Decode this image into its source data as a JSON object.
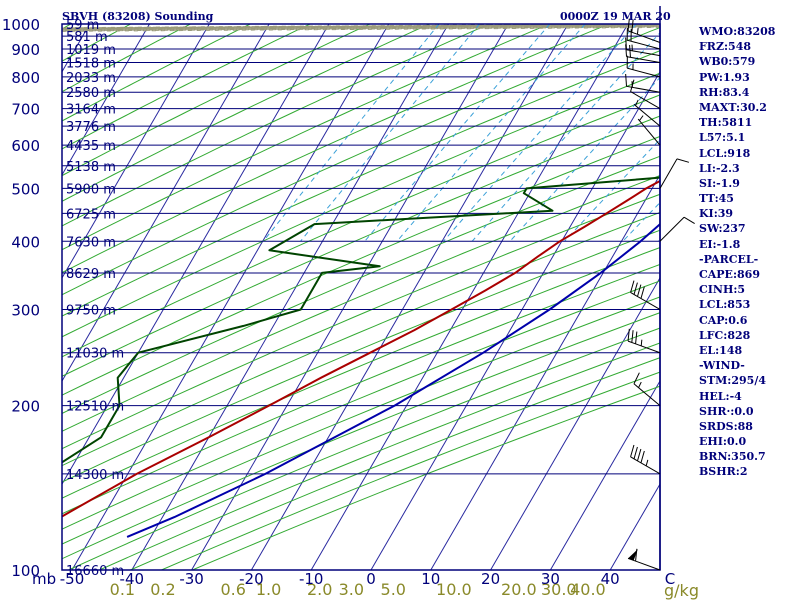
{
  "header": {
    "station": "SBVH (83208) Sounding",
    "time": "0000Z 19 MAR 20"
  },
  "indices": [
    "WMO:83208",
    "FRZ:548",
    "WB0:579",
    "PW:1.93",
    "RH:83.4",
    "MAXT:30.2",
    "TH:5811",
    "L57:5.1",
    "LCL:918",
    "LI:-2.3",
    "SI:-1.9",
    "TT:45",
    "KI:39",
    "SW:237",
    "EI:-1.8",
    "-PARCEL-",
    "CAPE:869",
    "CINH:5",
    "LCL:853",
    "CAP:0.6",
    "LFC:828",
    "EL:148",
    "-WIND-",
    "STM:295/4",
    "HEL:-4",
    "SHR·:0.0",
    "SRDS:88",
    "EHI:0.0",
    "BRN:350.7",
    "BSHR:2"
  ],
  "colors": {
    "frame": "#00007a",
    "isobar": "#00007a",
    "isotherm": "#2a2aa0",
    "dry_adiabat": "#33aa33",
    "moist_adiabat": "#9a9a7a",
    "mixing_ratio": "#3aa0d8",
    "temperature": "#aa0000",
    "dewpoint": "#004400",
    "parcel": "#0000aa",
    "mixing_ratio_labels": "#8a8a2a",
    "wind": "#000000"
  },
  "chart_data": {
    "type": "skew-t",
    "title": "SBVH (83208) Sounding",
    "subtitle": "0000Z 19 MAR 20",
    "xlabel": "",
    "ylabel": "mb",
    "xunits_right": "g/kg",
    "temperature_ticks": [
      "-50",
      "-40",
      "-30",
      "-20",
      "-10",
      "0",
      "10",
      "20",
      "30",
      "40",
      "C"
    ],
    "temperature_tick_values": [
      -50,
      -40,
      -30,
      -20,
      -10,
      0,
      10,
      20,
      30,
      40,
      50
    ],
    "pressure_ticks": [
      100,
      200,
      300,
      400,
      500,
      600,
      700,
      800,
      900,
      1000
    ],
    "pressure_range": [
      1000,
      100
    ],
    "mixing_ratio_labels": [
      "0.1",
      "0.2",
      "0.6",
      "1.0",
      "2.0",
      "3.0",
      "5.0",
      "10.0",
      "20.0",
      "30.0",
      "40.0"
    ],
    "mixing_ratio_values": [
      0.1,
      0.2,
      0.6,
      1.0,
      2.0,
      3.0,
      5.0,
      10.0,
      20.0,
      30.0,
      40.0
    ],
    "height_labels": [
      {
        "p": 100,
        "h": "16660 m"
      },
      {
        "p": 150,
        "h": "14300 m"
      },
      {
        "p": 200,
        "h": "12510 m"
      },
      {
        "p": 250,
        "h": "11030 m"
      },
      {
        "p": 300,
        "h": "9750 m"
      },
      {
        "p": 350,
        "h": "8629 m"
      },
      {
        "p": 400,
        "h": "7630 m"
      },
      {
        "p": 450,
        "h": "6725 m"
      },
      {
        "p": 500,
        "h": "5900 m"
      },
      {
        "p": 550,
        "h": "5138 m"
      },
      {
        "p": 600,
        "h": "4435 m"
      },
      {
        "p": 650,
        "h": "3776 m"
      },
      {
        "p": 700,
        "h": "3164 m"
      },
      {
        "p": 750,
        "h": "2580 m"
      },
      {
        "p": 800,
        "h": "2033 m"
      },
      {
        "p": 850,
        "h": "1518 m"
      },
      {
        "p": 900,
        "h": "1019 m"
      },
      {
        "p": 950,
        "h": "581 m"
      },
      {
        "p": 1000,
        "h": "59 m"
      }
    ],
    "series": [
      {
        "key": "temperature",
        "points": [
          [
            933,
            29
          ],
          [
            925,
            27
          ],
          [
            900,
            26
          ],
          [
            850,
            24.5
          ],
          [
            800,
            23
          ],
          [
            750,
            21.3
          ],
          [
            700,
            19.3
          ],
          [
            650,
            17
          ],
          [
            600,
            15.2
          ],
          [
            575,
            14.5
          ],
          [
            550,
            13.8
          ],
          [
            525,
            11.5
          ],
          [
            500,
            9
          ],
          [
            475,
            7
          ],
          [
            450,
            4.8
          ],
          [
            425,
            2.4
          ],
          [
            400,
            -0.3
          ],
          [
            375,
            -2.5
          ],
          [
            350,
            -4.7
          ],
          [
            325,
            -8
          ],
          [
            300,
            -11.8
          ],
          [
            275,
            -16
          ],
          [
            250,
            -21.2
          ],
          [
            225,
            -27
          ],
          [
            200,
            -33
          ],
          [
            175,
            -40
          ],
          [
            150,
            -48.5
          ],
          [
            125,
            -57
          ],
          [
            100,
            -61
          ],
          [
            94,
            -58
          ]
        ]
      },
      {
        "key": "dewpoint",
        "points": [
          [
            933,
            23
          ],
          [
            925,
            22.5
          ],
          [
            900,
            23.5
          ],
          [
            850,
            22
          ],
          [
            800,
            19.5
          ],
          [
            750,
            17
          ],
          [
            700,
            14.5
          ],
          [
            650,
            11.5
          ],
          [
            600,
            7.3
          ],
          [
            575,
            12
          ],
          [
            550,
            14
          ],
          [
            525,
            12
          ],
          [
            500,
            -11
          ],
          [
            490,
            -11
          ],
          [
            455,
            -4.5
          ],
          [
            430,
            -43
          ],
          [
            385,
            -48
          ],
          [
            360,
            -28
          ],
          [
            350,
            -37
          ],
          [
            300,
            -37
          ],
          [
            280,
            -45
          ],
          [
            250,
            -60
          ],
          [
            225,
            -61
          ],
          [
            200,
            -58
          ],
          [
            175,
            -58
          ],
          [
            150,
            -64
          ],
          [
            140,
            -68
          ],
          [
            125,
            -72
          ],
          [
            100,
            -78
          ],
          [
            95,
            -77
          ]
        ]
      },
      {
        "key": "parcel",
        "points": [
          [
            933,
            29
          ],
          [
            900,
            26
          ],
          [
            850,
            24.6
          ],
          [
            800,
            23.5
          ],
          [
            750,
            22.8
          ],
          [
            700,
            22
          ],
          [
            650,
            21.2
          ],
          [
            600,
            20.2
          ],
          [
            550,
            19
          ],
          [
            500,
            17.6
          ],
          [
            450,
            15.8
          ],
          [
            400,
            13.2
          ],
          [
            350,
            9.6
          ],
          [
            300,
            4.6
          ],
          [
            250,
            -2.3
          ],
          [
            200,
            -12
          ],
          [
            150,
            -27
          ],
          [
            125,
            -38
          ],
          [
            115,
            -44
          ]
        ]
      }
    ],
    "wind_barbs": [
      {
        "p": 925,
        "dir": 290,
        "kt": 25
      },
      {
        "p": 900,
        "dir": 285,
        "kt": 20
      },
      {
        "p": 875,
        "dir": 280,
        "kt": 15
      },
      {
        "p": 850,
        "dir": 280,
        "kt": 20
      },
      {
        "p": 800,
        "dir": 285,
        "kt": 15
      },
      {
        "p": 750,
        "dir": 280,
        "kt": 15
      },
      {
        "p": 700,
        "dir": 300,
        "kt": 10
      },
      {
        "p": 650,
        "dir": 310,
        "kt": 5
      },
      {
        "p": 600,
        "dir": 320,
        "kt": 5
      },
      {
        "p": 500,
        "dir": 30,
        "kt": 10
      },
      {
        "p": 400,
        "dir": 45,
        "kt": 10
      },
      {
        "p": 300,
        "dir": 300,
        "kt": 40
      },
      {
        "p": 250,
        "dir": 290,
        "kt": 35
      },
      {
        "p": 200,
        "dir": 310,
        "kt": 15
      },
      {
        "p": 150,
        "dir": 300,
        "kt": 45
      },
      {
        "p": 100,
        "dir": 290,
        "kt": 60
      }
    ]
  }
}
